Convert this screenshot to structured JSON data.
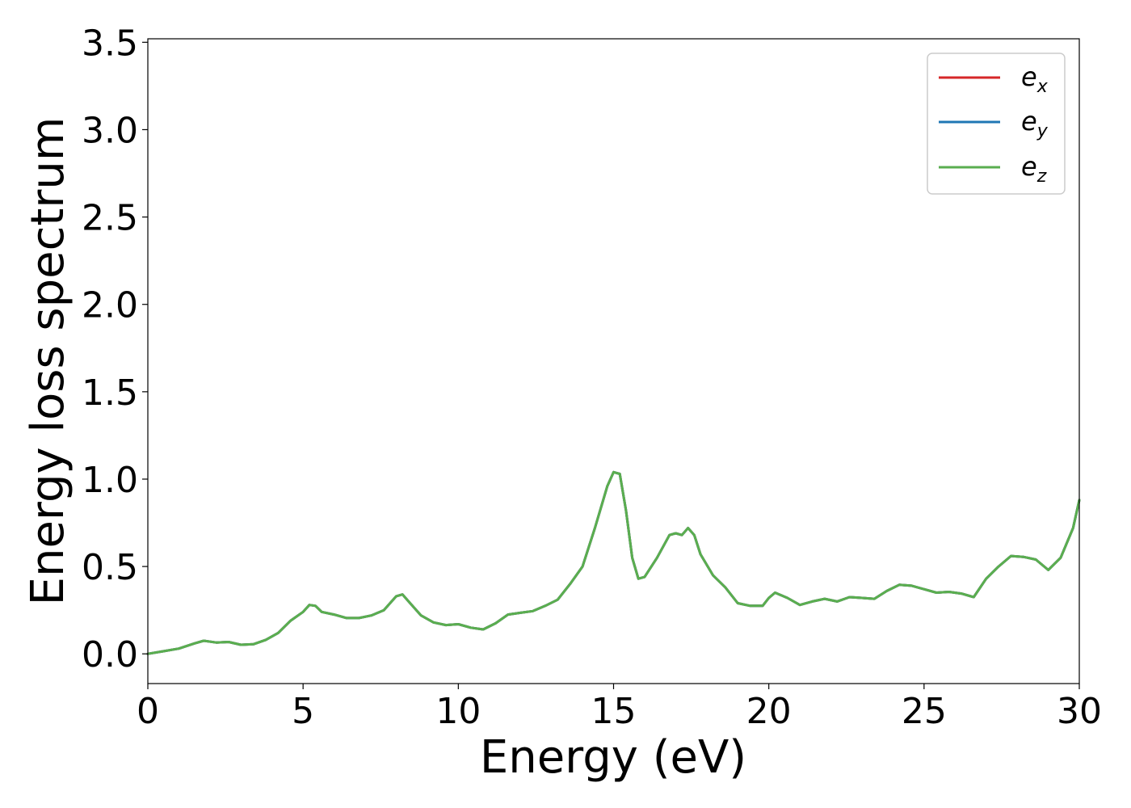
{
  "chart_data": {
    "type": "line",
    "xlabel": "Energy (eV)",
    "ylabel": "Energy loss spectrum",
    "xlim": [
      0,
      30
    ],
    "ylim": [
      -0.17,
      3.52
    ],
    "x_ticks": [
      0,
      5,
      10,
      15,
      20,
      25,
      30
    ],
    "y_ticks": [
      0.0,
      0.5,
      1.0,
      1.5,
      2.0,
      2.5,
      3.0,
      3.5
    ],
    "x_tick_labels": [
      "0",
      "5",
      "10",
      "15",
      "20",
      "25",
      "30"
    ],
    "y_tick_labels": [
      "0.0",
      "0.5",
      "1.0",
      "1.5",
      "2.0",
      "2.5",
      "3.0",
      "3.5"
    ],
    "grid": false,
    "legend_position": "top-right",
    "series": [
      {
        "name": "e_x",
        "label_base": "e",
        "label_sub": "x",
        "color": "#d62728"
      },
      {
        "name": "e_y",
        "label_base": "e",
        "label_sub": "y",
        "color": "#1f77b4"
      },
      {
        "name": "e_z",
        "label_base": "e",
        "label_sub": "z",
        "color": "#5aae4f"
      }
    ],
    "x": [
      0,
      0.5,
      1.0,
      1.5,
      1.8,
      2.2,
      2.6,
      3.0,
      3.4,
      3.8,
      4.2,
      4.6,
      5.0,
      5.2,
      5.4,
      5.6,
      6.0,
      6.4,
      6.8,
      7.2,
      7.6,
      8.0,
      8.2,
      8.4,
      8.8,
      9.2,
      9.6,
      10.0,
      10.4,
      10.8,
      11.2,
      11.6,
      12.0,
      12.4,
      12.8,
      13.2,
      13.6,
      14.0,
      14.4,
      14.8,
      15.0,
      15.2,
      15.4,
      15.6,
      15.8,
      16.0,
      16.4,
      16.8,
      17.0,
      17.2,
      17.4,
      17.6,
      17.8,
      18.2,
      18.6,
      19.0,
      19.4,
      19.8,
      20.0,
      20.2,
      20.6,
      21.0,
      21.4,
      21.8,
      22.2,
      22.6,
      23.0,
      23.4,
      23.8,
      24.2,
      24.6,
      25.0,
      25.4,
      25.8,
      26.2,
      26.6,
      27.0,
      27.4,
      27.8,
      28.2,
      28.6,
      29.0,
      29.4,
      29.8,
      30.0
    ],
    "y": [
      0.0,
      0.015,
      0.03,
      0.06,
      0.075,
      0.065,
      0.068,
      0.052,
      0.055,
      0.08,
      0.12,
      0.19,
      0.24,
      0.28,
      0.275,
      0.24,
      0.225,
      0.205,
      0.205,
      0.22,
      0.25,
      0.33,
      0.34,
      0.3,
      0.22,
      0.18,
      0.165,
      0.17,
      0.15,
      0.14,
      0.175,
      0.225,
      0.235,
      0.245,
      0.275,
      0.31,
      0.4,
      0.5,
      0.72,
      0.96,
      1.04,
      1.03,
      0.82,
      0.55,
      0.43,
      0.44,
      0.55,
      0.68,
      0.69,
      0.68,
      0.72,
      0.68,
      0.57,
      0.45,
      0.38,
      0.29,
      0.275,
      0.275,
      0.32,
      0.35,
      0.32,
      0.28,
      0.3,
      0.315,
      0.3,
      0.325,
      0.32,
      0.315,
      0.36,
      0.395,
      0.39,
      0.37,
      0.35,
      0.355,
      0.345,
      0.325,
      0.43,
      0.5,
      0.56,
      0.555,
      0.54,
      0.48,
      0.55,
      0.72,
      0.88
    ]
  }
}
